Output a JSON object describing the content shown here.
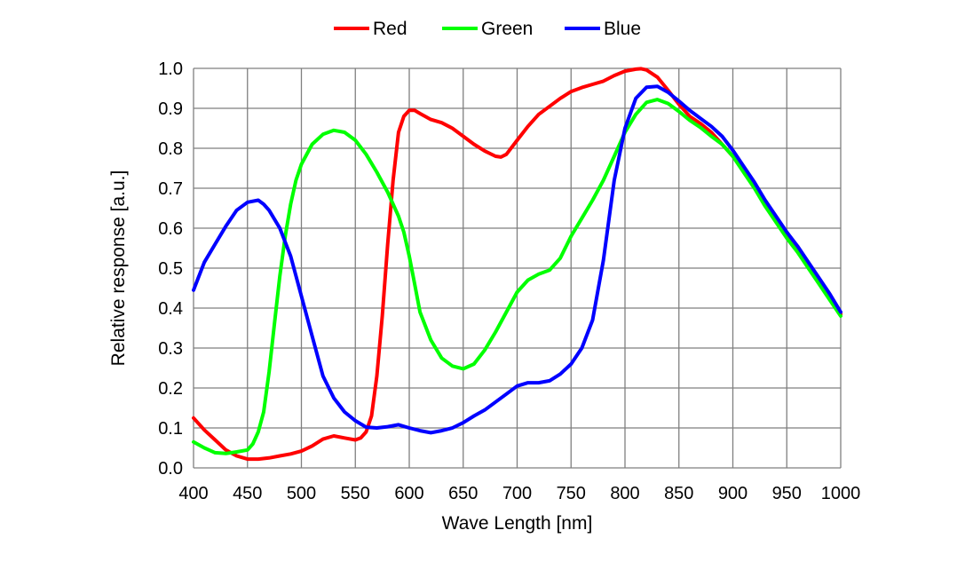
{
  "chart_data": {
    "type": "line",
    "title": "",
    "xlabel": "Wave Length [nm]",
    "ylabel": "Relative response [a.u.]",
    "xlim": [
      400,
      1000
    ],
    "ylim": [
      0.0,
      1.0
    ],
    "x_ticks": [
      400,
      450,
      500,
      550,
      600,
      650,
      700,
      750,
      800,
      850,
      900,
      950,
      1000
    ],
    "x_tick_labels": [
      "400",
      "450",
      "500",
      "550",
      "600",
      "650",
      "700",
      "750",
      "800",
      "850",
      "900",
      "950",
      "1000"
    ],
    "y_ticks": [
      0.0,
      0.1,
      0.2,
      0.3,
      0.4,
      0.5,
      0.6,
      0.7,
      0.8,
      0.9,
      1.0
    ],
    "y_tick_labels": [
      "0.0",
      "0.1",
      "0.2",
      "0.3",
      "0.4",
      "0.5",
      "0.6",
      "0.7",
      "0.8",
      "0.9",
      "1.0"
    ],
    "grid": true,
    "legend_position": "top-center",
    "series": [
      {
        "name": "Red",
        "color": "#ff0000",
        "points": [
          [
            400,
            0.125
          ],
          [
            410,
            0.095
          ],
          [
            420,
            0.07
          ],
          [
            430,
            0.045
          ],
          [
            440,
            0.03
          ],
          [
            450,
            0.022
          ],
          [
            460,
            0.022
          ],
          [
            470,
            0.025
          ],
          [
            480,
            0.03
          ],
          [
            490,
            0.035
          ],
          [
            500,
            0.042
          ],
          [
            510,
            0.055
          ],
          [
            520,
            0.072
          ],
          [
            530,
            0.08
          ],
          [
            540,
            0.075
          ],
          [
            550,
            0.07
          ],
          [
            555,
            0.075
          ],
          [
            560,
            0.09
          ],
          [
            565,
            0.13
          ],
          [
            570,
            0.23
          ],
          [
            575,
            0.38
          ],
          [
            580,
            0.56
          ],
          [
            585,
            0.72
          ],
          [
            590,
            0.84
          ],
          [
            595,
            0.88
          ],
          [
            600,
            0.895
          ],
          [
            605,
            0.895
          ],
          [
            610,
            0.887
          ],
          [
            620,
            0.872
          ],
          [
            630,
            0.864
          ],
          [
            640,
            0.85
          ],
          [
            650,
            0.83
          ],
          [
            660,
            0.81
          ],
          [
            670,
            0.793
          ],
          [
            680,
            0.78
          ],
          [
            685,
            0.778
          ],
          [
            690,
            0.785
          ],
          [
            700,
            0.82
          ],
          [
            710,
            0.855
          ],
          [
            720,
            0.885
          ],
          [
            730,
            0.905
          ],
          [
            740,
            0.925
          ],
          [
            750,
            0.942
          ],
          [
            760,
            0.952
          ],
          [
            770,
            0.96
          ],
          [
            780,
            0.968
          ],
          [
            790,
            0.982
          ],
          [
            800,
            0.993
          ],
          [
            810,
            0.998
          ],
          [
            815,
            0.999
          ],
          [
            820,
            0.996
          ],
          [
            830,
            0.978
          ],
          [
            840,
            0.945
          ],
          [
            850,
            0.91
          ],
          [
            860,
            0.88
          ],
          [
            870,
            0.862
          ],
          [
            880,
            0.84
          ],
          [
            890,
            0.81
          ],
          [
            900,
            0.78
          ],
          [
            910,
            0.745
          ],
          [
            920,
            0.705
          ],
          [
            930,
            0.665
          ],
          [
            940,
            0.625
          ],
          [
            950,
            0.585
          ],
          [
            960,
            0.55
          ],
          [
            970,
            0.51
          ],
          [
            980,
            0.47
          ],
          [
            990,
            0.43
          ],
          [
            1000,
            0.385
          ]
        ]
      },
      {
        "name": "Green",
        "color": "#00ff00",
        "points": [
          [
            400,
            0.065
          ],
          [
            410,
            0.05
          ],
          [
            420,
            0.038
          ],
          [
            430,
            0.036
          ],
          [
            440,
            0.04
          ],
          [
            450,
            0.045
          ],
          [
            455,
            0.06
          ],
          [
            460,
            0.09
          ],
          [
            465,
            0.14
          ],
          [
            470,
            0.24
          ],
          [
            475,
            0.36
          ],
          [
            480,
            0.48
          ],
          [
            485,
            0.58
          ],
          [
            490,
            0.66
          ],
          [
            495,
            0.72
          ],
          [
            500,
            0.76
          ],
          [
            510,
            0.81
          ],
          [
            520,
            0.835
          ],
          [
            530,
            0.845
          ],
          [
            540,
            0.84
          ],
          [
            550,
            0.82
          ],
          [
            560,
            0.785
          ],
          [
            570,
            0.74
          ],
          [
            580,
            0.69
          ],
          [
            590,
            0.63
          ],
          [
            595,
            0.59
          ],
          [
            600,
            0.53
          ],
          [
            605,
            0.46
          ],
          [
            610,
            0.39
          ],
          [
            620,
            0.32
          ],
          [
            630,
            0.275
          ],
          [
            640,
            0.255
          ],
          [
            650,
            0.248
          ],
          [
            660,
            0.26
          ],
          [
            670,
            0.295
          ],
          [
            680,
            0.34
          ],
          [
            690,
            0.39
          ],
          [
            700,
            0.44
          ],
          [
            710,
            0.47
          ],
          [
            720,
            0.485
          ],
          [
            730,
            0.495
          ],
          [
            740,
            0.525
          ],
          [
            750,
            0.58
          ],
          [
            760,
            0.625
          ],
          [
            770,
            0.67
          ],
          [
            780,
            0.72
          ],
          [
            790,
            0.78
          ],
          [
            800,
            0.84
          ],
          [
            810,
            0.885
          ],
          [
            820,
            0.915
          ],
          [
            830,
            0.922
          ],
          [
            840,
            0.912
          ],
          [
            850,
            0.892
          ],
          [
            860,
            0.87
          ],
          [
            870,
            0.852
          ],
          [
            880,
            0.83
          ],
          [
            890,
            0.81
          ],
          [
            900,
            0.78
          ],
          [
            910,
            0.74
          ],
          [
            920,
            0.7
          ],
          [
            930,
            0.655
          ],
          [
            940,
            0.615
          ],
          [
            950,
            0.575
          ],
          [
            960,
            0.54
          ],
          [
            970,
            0.5
          ],
          [
            980,
            0.46
          ],
          [
            990,
            0.42
          ],
          [
            1000,
            0.38
          ]
        ]
      },
      {
        "name": "Blue",
        "color": "#0000ff",
        "points": [
          [
            400,
            0.445
          ],
          [
            405,
            0.48
          ],
          [
            410,
            0.515
          ],
          [
            420,
            0.56
          ],
          [
            430,
            0.605
          ],
          [
            440,
            0.645
          ],
          [
            450,
            0.665
          ],
          [
            460,
            0.67
          ],
          [
            465,
            0.66
          ],
          [
            470,
            0.645
          ],
          [
            480,
            0.6
          ],
          [
            490,
            0.53
          ],
          [
            500,
            0.43
          ],
          [
            510,
            0.33
          ],
          [
            520,
            0.23
          ],
          [
            530,
            0.175
          ],
          [
            540,
            0.14
          ],
          [
            550,
            0.118
          ],
          [
            560,
            0.102
          ],
          [
            570,
            0.1
          ],
          [
            580,
            0.103
          ],
          [
            590,
            0.108
          ],
          [
            600,
            0.1
          ],
          [
            610,
            0.093
          ],
          [
            620,
            0.088
          ],
          [
            630,
            0.093
          ],
          [
            640,
            0.1
          ],
          [
            650,
            0.113
          ],
          [
            660,
            0.13
          ],
          [
            670,
            0.145
          ],
          [
            680,
            0.165
          ],
          [
            690,
            0.185
          ],
          [
            700,
            0.205
          ],
          [
            710,
            0.213
          ],
          [
            720,
            0.213
          ],
          [
            730,
            0.218
          ],
          [
            740,
            0.235
          ],
          [
            750,
            0.26
          ],
          [
            760,
            0.3
          ],
          [
            770,
            0.37
          ],
          [
            780,
            0.52
          ],
          [
            790,
            0.72
          ],
          [
            800,
            0.85
          ],
          [
            810,
            0.925
          ],
          [
            820,
            0.953
          ],
          [
            830,
            0.955
          ],
          [
            840,
            0.94
          ],
          [
            850,
            0.918
          ],
          [
            860,
            0.895
          ],
          [
            870,
            0.875
          ],
          [
            880,
            0.855
          ],
          [
            890,
            0.83
          ],
          [
            900,
            0.795
          ],
          [
            910,
            0.755
          ],
          [
            920,
            0.715
          ],
          [
            930,
            0.67
          ],
          [
            940,
            0.63
          ],
          [
            950,
            0.59
          ],
          [
            960,
            0.555
          ],
          [
            970,
            0.515
          ],
          [
            980,
            0.475
          ],
          [
            990,
            0.435
          ],
          [
            1000,
            0.39
          ]
        ]
      }
    ]
  }
}
